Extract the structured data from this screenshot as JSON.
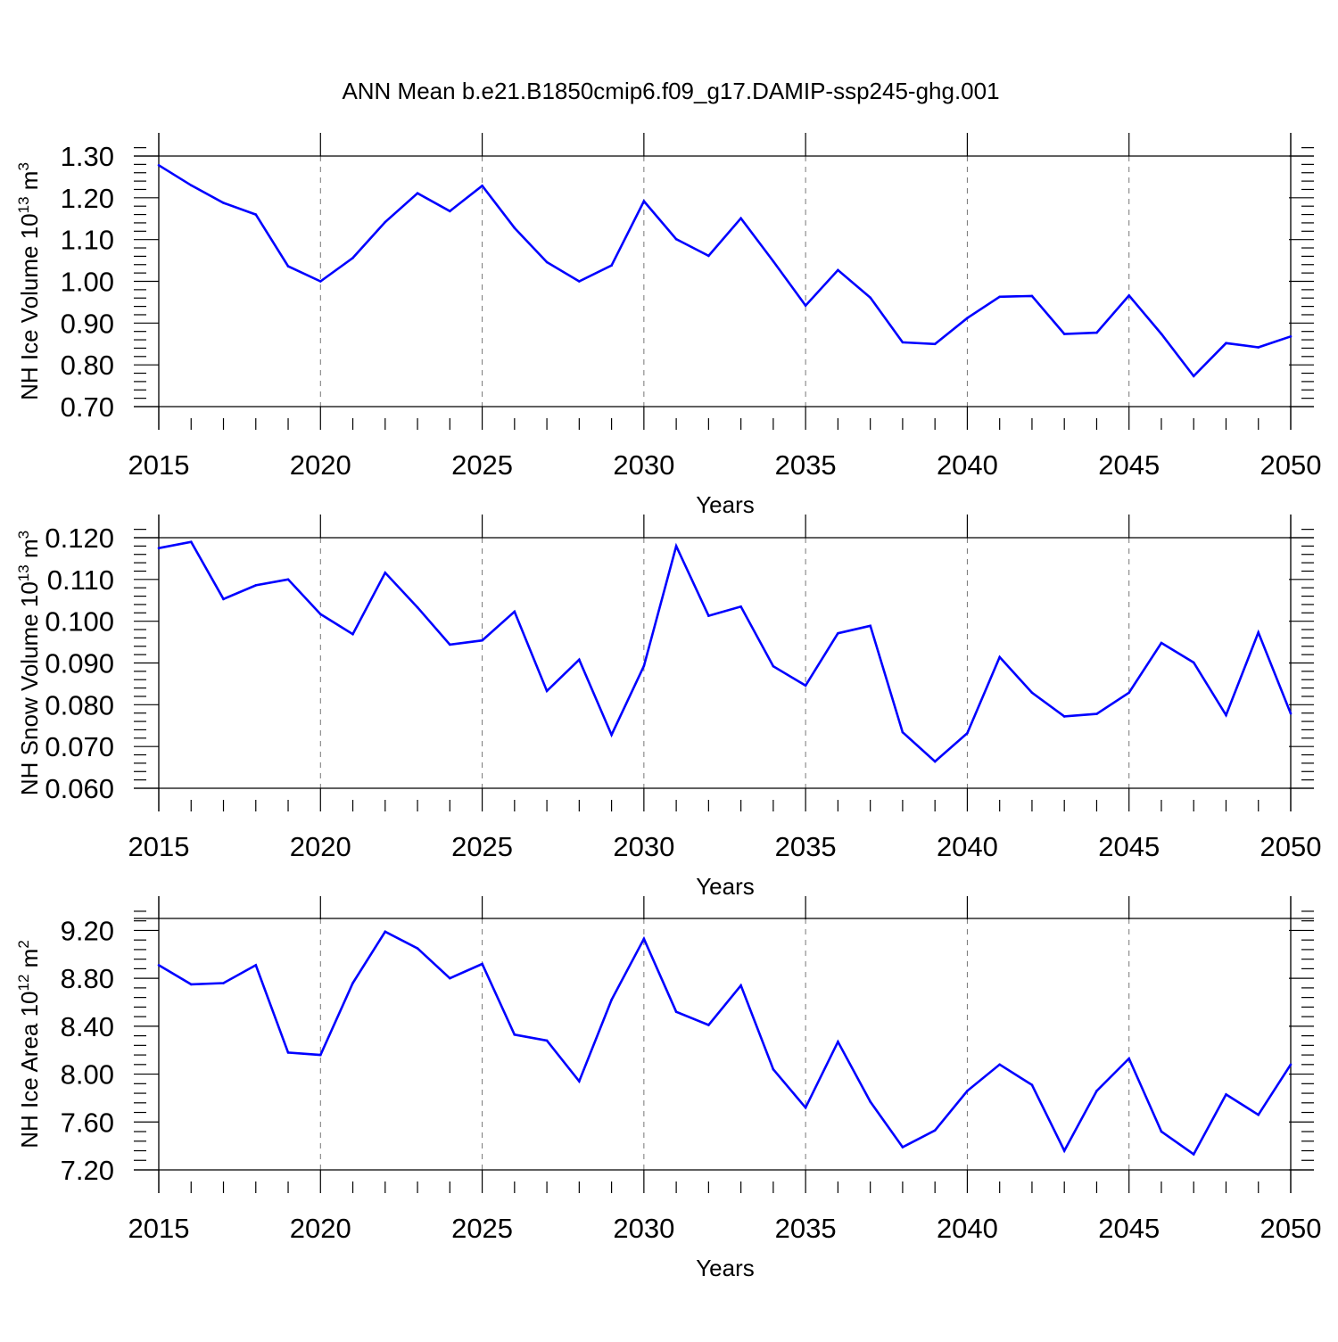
{
  "title": "ANN Mean b.e21.B1850cmip6.f09_g17.DAMIP-ssp245-ghg.001",
  "line_color": "#0000ff",
  "chart_data": [
    {
      "type": "line",
      "xlabel": "Years",
      "ylabel": "NH Ice Volume 10",
      "ylabel_exp": "13",
      "ylabel_unit": " m",
      "ylabel_unit_exp": "3",
      "xlim": [
        2015,
        2050
      ],
      "ylim": [
        0.7,
        1.3
      ],
      "xticks": [
        2015,
        2020,
        2025,
        2030,
        2035,
        2040,
        2045,
        2050
      ],
      "yticks": [
        "0.70",
        "0.80",
        "0.90",
        "1.00",
        "1.10",
        "1.20",
        "1.30"
      ],
      "grid": "vertical dashed at major x ticks",
      "x": [
        2015,
        2016,
        2017,
        2018,
        2019,
        2020,
        2021,
        2022,
        2023,
        2024,
        2025,
        2026,
        2027,
        2028,
        2029,
        2030,
        2031,
        2032,
        2033,
        2034,
        2035,
        2036,
        2037,
        2038,
        2039,
        2040,
        2041,
        2042,
        2043,
        2044,
        2045,
        2046,
        2047,
        2048,
        2049,
        2050
      ],
      "values": [
        1.278,
        1.23,
        1.188,
        1.16,
        1.036,
        1.0,
        1.056,
        1.142,
        1.211,
        1.168,
        1.229,
        1.128,
        1.046,
        1.0,
        1.038,
        1.192,
        1.101,
        1.061,
        1.151,
        1.048,
        0.942,
        1.027,
        0.961,
        0.854,
        0.85,
        0.912,
        0.963,
        0.965,
        0.874,
        0.877,
        0.966,
        0.874,
        0.773,
        0.852,
        0.842,
        0.868
      ]
    },
    {
      "type": "line",
      "xlabel": "Years",
      "ylabel": "NH Snow Volume 10",
      "ylabel_exp": "13",
      "ylabel_unit": " m",
      "ylabel_unit_exp": "3",
      "xlim": [
        2015,
        2050
      ],
      "ylim": [
        0.06,
        0.12
      ],
      "xticks": [
        2015,
        2020,
        2025,
        2030,
        2035,
        2040,
        2045,
        2050
      ],
      "yticks": [
        "0.060",
        "0.070",
        "0.080",
        "0.090",
        "0.100",
        "0.110",
        "0.120"
      ],
      "grid": "vertical dashed at major x ticks",
      "x": [
        2015,
        2016,
        2017,
        2018,
        2019,
        2020,
        2021,
        2022,
        2023,
        2024,
        2025,
        2026,
        2027,
        2028,
        2029,
        2030,
        2031,
        2032,
        2033,
        2034,
        2035,
        2036,
        2037,
        2038,
        2039,
        2040,
        2041,
        2042,
        2043,
        2044,
        2045,
        2046,
        2047,
        2048,
        2049,
        2050
      ],
      "values": [
        0.1175,
        0.119,
        0.1053,
        0.1086,
        0.11,
        0.1017,
        0.0969,
        0.1116,
        0.1033,
        0.0944,
        0.0954,
        0.1023,
        0.0833,
        0.0908,
        0.0728,
        0.0893,
        0.118,
        0.1013,
        0.1035,
        0.0892,
        0.0846,
        0.0971,
        0.0989,
        0.0734,
        0.0664,
        0.0732,
        0.0914,
        0.0829,
        0.0772,
        0.0778,
        0.0829,
        0.0948,
        0.0901,
        0.0775,
        0.0973,
        0.0779
      ]
    },
    {
      "type": "line",
      "xlabel": "Years",
      "ylabel": "NH Ice Area 10",
      "ylabel_exp": "12",
      "ylabel_unit": " m",
      "ylabel_unit_exp": "2",
      "xlim": [
        2015,
        2050
      ],
      "ylim": [
        7.2,
        9.3
      ],
      "xticks": [
        2015,
        2020,
        2025,
        2030,
        2035,
        2040,
        2045,
        2050
      ],
      "yticks": [
        "7.20",
        "7.60",
        "8.00",
        "8.40",
        "8.80",
        "9.20"
      ],
      "grid": "vertical dashed at major x ticks",
      "x": [
        2015,
        2016,
        2017,
        2018,
        2019,
        2020,
        2021,
        2022,
        2023,
        2024,
        2025,
        2026,
        2027,
        2028,
        2029,
        2030,
        2031,
        2032,
        2033,
        2034,
        2035,
        2036,
        2037,
        2038,
        2039,
        2040,
        2041,
        2042,
        2043,
        2044,
        2045,
        2046,
        2047,
        2048,
        2049,
        2050
      ],
      "values": [
        8.91,
        8.75,
        8.76,
        8.91,
        8.18,
        8.16,
        8.76,
        9.19,
        9.05,
        8.8,
        8.92,
        8.33,
        8.28,
        7.94,
        8.62,
        9.13,
        8.52,
        8.41,
        8.74,
        8.04,
        7.72,
        8.27,
        7.77,
        7.39,
        7.53,
        7.86,
        8.08,
        7.91,
        7.36,
        7.86,
        8.13,
        7.52,
        7.33,
        7.83,
        7.66,
        8.08
      ]
    }
  ]
}
